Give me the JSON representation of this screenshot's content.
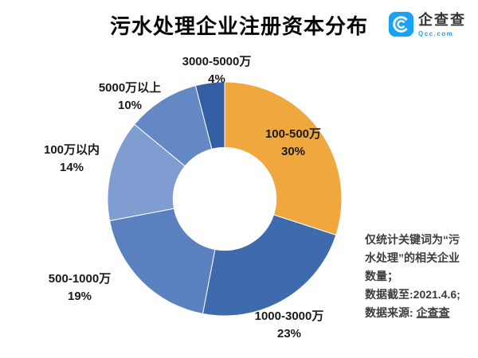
{
  "header": {
    "title": "污水处理企业注册资本分布",
    "logo": {
      "name": "企查查",
      "domain": "Qcc.com",
      "brand_color": "#19A3F8"
    }
  },
  "chart_data": {
    "type": "pie",
    "subtype": "donut",
    "title": "污水处理企业注册资本分布",
    "unit": "percent",
    "direction": "clockwise",
    "start_angle_deg": 0,
    "inner_radius_ratio": 0.44,
    "legend_position": "none",
    "slices": [
      {
        "label": "100-500万",
        "value": 30,
        "pct_label": "30%",
        "color": "#EFA73E",
        "label_position": "inside"
      },
      {
        "label": "1000-3000万",
        "value": 23,
        "pct_label": "23%",
        "color": "#3E6BAD",
        "label_position": "outside"
      },
      {
        "label": "500-1000万",
        "value": 19,
        "pct_label": "19%",
        "color": "#5B80C0",
        "label_position": "outside"
      },
      {
        "label": "100万以内",
        "value": 14,
        "pct_label": "14%",
        "color": "#7F9DD1",
        "label_position": "outside"
      },
      {
        "label": "5000万以上",
        "value": 10,
        "pct_label": "10%",
        "color": "#6488C4",
        "label_position": "outside"
      },
      {
        "label": "3000-5000万",
        "value": 4,
        "pct_label": "4%",
        "color": "#345EA3",
        "label_position": "outside"
      }
    ]
  },
  "note": {
    "line1": "仅统计关键词为“污水处理”的相关企业数量；",
    "line2": "数据截至:2021.4.6;",
    "line3_prefix": "数据来源: ",
    "line3_source": "企查查"
  }
}
